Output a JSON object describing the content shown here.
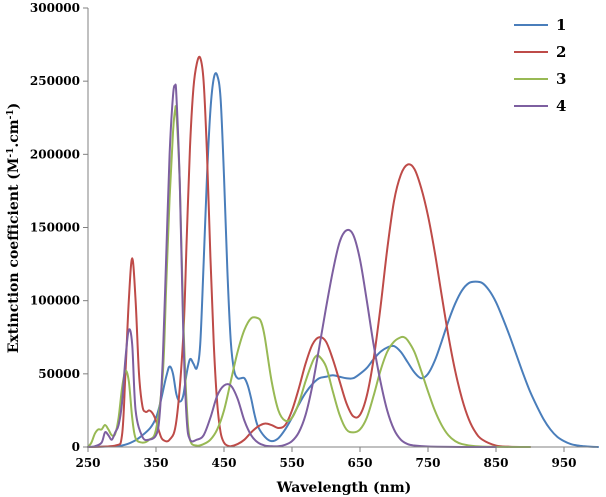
{
  "chart_data": {
    "type": "line",
    "xlabel": "Wavelength (nm)",
    "ylabel": "Extinction coefficient (M",
    "ylabel_sup1": "-1",
    "ylabel_mid": ".cm",
    "ylabel_sup2": "-1",
    "ylabel_end": ")",
    "xlim": [
      250,
      1000
    ],
    "ylim": [
      0,
      300000
    ],
    "xticks": [
      250,
      350,
      450,
      550,
      650,
      750,
      850,
      950
    ],
    "yticks": [
      0,
      50000,
      100000,
      150000,
      200000,
      250000,
      300000
    ],
    "grid": false,
    "legend_position": "top-right",
    "series": [
      {
        "name": "1",
        "color": "#4A7EBB",
        "x": [
          250,
          300,
          330,
          350,
          365,
          370,
          375,
          380,
          385,
          390,
          395,
          400,
          405,
          410,
          415,
          420,
          425,
          430,
          435,
          440,
          445,
          450,
          455,
          460,
          465,
          470,
          475,
          480,
          485,
          490,
          495,
          500,
          510,
          520,
          530,
          540,
          550,
          560,
          570,
          580,
          590,
          600,
          610,
          620,
          630,
          640,
          650,
          660,
          670,
          680,
          690,
          700,
          710,
          720,
          730,
          740,
          750,
          760,
          770,
          780,
          790,
          800,
          810,
          820,
          830,
          840,
          850,
          860,
          870,
          880,
          890,
          900,
          910,
          920,
          930,
          940,
          950,
          960,
          970,
          980,
          990,
          1000
        ],
        "y": [
          0,
          1000,
          8000,
          20000,
          48000,
          55000,
          50000,
          36000,
          31000,
          35000,
          50000,
          60000,
          57000,
          54000,
          70000,
          125000,
          185000,
          230000,
          252000,
          254000,
          238000,
          185000,
          120000,
          72000,
          52000,
          47000,
          47000,
          47000,
          42000,
          33000,
          22000,
          14000,
          7000,
          4000,
          6000,
          12000,
          20000,
          29000,
          37000,
          43000,
          47000,
          48000,
          49000,
          48000,
          47000,
          47000,
          50000,
          54000,
          60000,
          65000,
          68000,
          69000,
          65000,
          58000,
          51000,
          47000,
          50000,
          59000,
          72000,
          86000,
          98000,
          107000,
          112000,
          113000,
          112000,
          107000,
          99000,
          88000,
          76000,
          63000,
          50000,
          38000,
          28000,
          19000,
          12000,
          7000,
          4000,
          2000,
          1000,
          500,
          200,
          0
        ]
      },
      {
        "name": "2",
        "color": "#BE4B48",
        "x": [
          250,
          290,
          300,
          305,
          310,
          315,
          320,
          325,
          330,
          335,
          340,
          345,
          350,
          355,
          360,
          370,
          380,
          390,
          395,
          400,
          405,
          410,
          415,
          420,
          425,
          430,
          435,
          440,
          445,
          450,
          455,
          460,
          470,
          480,
          490,
          500,
          510,
          520,
          530,
          540,
          550,
          560,
          570,
          580,
          590,
          600,
          610,
          620,
          630,
          640,
          650,
          660,
          670,
          680,
          690,
          700,
          710,
          720,
          730,
          740,
          750,
          760,
          770,
          780,
          790,
          800,
          810,
          820,
          830,
          850,
          870,
          900
        ],
        "y": [
          0,
          1000,
          8000,
          50000,
          100000,
          129000,
          100000,
          50000,
          28000,
          24000,
          25000,
          23000,
          18000,
          10000,
          5000,
          5000,
          18000,
          75000,
          140000,
          205000,
          245000,
          262000,
          266000,
          250000,
          200000,
          130000,
          70000,
          30000,
          10000,
          3000,
          1000,
          500,
          2000,
          5000,
          10000,
          14000,
          16000,
          15000,
          13000,
          15000,
          25000,
          40000,
          57000,
          70000,
          75000,
          72000,
          60000,
          45000,
          30000,
          21000,
          22000,
          35000,
          60000,
          95000,
          135000,
          168000,
          186000,
          193000,
          190000,
          177000,
          158000,
          133000,
          104000,
          76000,
          52000,
          33000,
          19000,
          10000,
          5000,
          1000,
          200,
          0
        ]
      },
      {
        "name": "3",
        "color": "#98B954",
        "x": [
          250,
          255,
          260,
          265,
          270,
          275,
          280,
          285,
          290,
          295,
          300,
          305,
          310,
          315,
          320,
          330,
          340,
          350,
          360,
          365,
          370,
          375,
          378,
          380,
          385,
          390,
          395,
          400,
          410,
          420,
          430,
          440,
          450,
          460,
          470,
          480,
          490,
          500,
          505,
          510,
          520,
          530,
          540,
          550,
          560,
          570,
          580,
          585,
          590,
          600,
          610,
          620,
          630,
          640,
          650,
          660,
          670,
          680,
          690,
          700,
          710,
          715,
          720,
          730,
          740,
          750,
          760,
          770,
          780,
          790,
          800,
          820,
          850,
          900
        ],
        "y": [
          0,
          3000,
          9000,
          12000,
          12000,
          15000,
          12000,
          8000,
          9000,
          20000,
          40000,
          52000,
          45000,
          20000,
          6000,
          3000,
          5000,
          12000,
          50000,
          110000,
          170000,
          215000,
          230000,
          228000,
          180000,
          90000,
          30000,
          5000,
          1000,
          2000,
          5000,
          12000,
          25000,
          45000,
          65000,
          80000,
          88000,
          88000,
          85000,
          75000,
          45000,
          25000,
          18000,
          20000,
          30000,
          45000,
          58000,
          62000,
          62000,
          55000,
          38000,
          22000,
          12000,
          10000,
          12000,
          20000,
          35000,
          52000,
          65000,
          72000,
          75000,
          75000,
          73000,
          65000,
          52000,
          38000,
          25000,
          15000,
          8000,
          4000,
          2000,
          500,
          100,
          0
        ]
      },
      {
        "name": "4",
        "color": "#7D5FA0",
        "x": [
          250,
          260,
          270,
          275,
          280,
          285,
          290,
          295,
          300,
          305,
          310,
          315,
          320,
          330,
          340,
          350,
          355,
          360,
          365,
          370,
          375,
          378,
          380,
          385,
          390,
          395,
          400,
          410,
          420,
          430,
          440,
          450,
          460,
          470,
          480,
          490,
          500,
          510,
          520,
          530,
          540,
          550,
          560,
          570,
          580,
          590,
          600,
          610,
          620,
          630,
          640,
          650,
          660,
          670,
          680,
          690,
          700,
          710,
          720,
          730,
          750,
          800,
          850
        ],
        "y": [
          0,
          500,
          3000,
          10000,
          8000,
          5000,
          10000,
          15000,
          30000,
          60000,
          80000,
          70000,
          25000,
          7000,
          5000,
          8000,
          20000,
          60000,
          130000,
          200000,
          240000,
          247000,
          240000,
          180000,
          80000,
          20000,
          5000,
          5000,
          8000,
          20000,
          35000,
          42000,
          42000,
          33000,
          18000,
          8000,
          3000,
          1000,
          500,
          500,
          1500,
          4000,
          10000,
          22000,
          42000,
          68000,
          95000,
          120000,
          140000,
          148000,
          145000,
          128000,
          100000,
          70000,
          45000,
          25000,
          12000,
          5000,
          2000,
          1000,
          300,
          0,
          0
        ]
      }
    ]
  }
}
